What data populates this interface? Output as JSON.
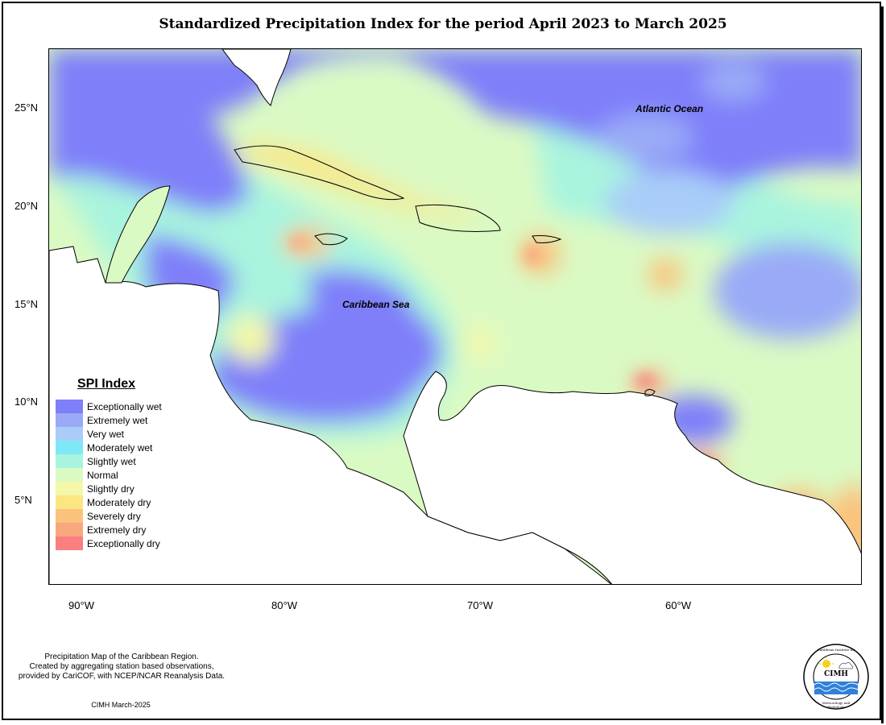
{
  "title": "Standardized Precipitation Index for the period April 2023 to March 2025",
  "latitude_ticks": [
    "25°N",
    "20°N",
    "15°N",
    "10°N",
    "5°N"
  ],
  "longitude_ticks": [
    "90°W",
    "80°W",
    "70°W",
    "60°W"
  ],
  "labels": {
    "atlantic": "Atlantic Ocean",
    "caribbean": "Caribbean Sea"
  },
  "legend": {
    "title": "SPI Index",
    "items": [
      {
        "label": "Exceptionally wet",
        "color": "#7f7ff9"
      },
      {
        "label": "Extremely wet",
        "color": "#9aaaf7"
      },
      {
        "label": "Very wet",
        "color": "#a9cdf8"
      },
      {
        "label": "Moderately wet",
        "color": "#7fe8f7"
      },
      {
        "label": "Slightly wet",
        "color": "#a9f4de"
      },
      {
        "label": "Normal",
        "color": "#dafac4"
      },
      {
        "label": "Slightly dry",
        "color": "#f4f8a8"
      },
      {
        "label": "Moderately dry",
        "color": "#fbe681"
      },
      {
        "label": "Severely dry",
        "color": "#fbc27d"
      },
      {
        "label": "Extremely dry",
        "color": "#f9a77f"
      },
      {
        "label": "Exceptionally dry",
        "color": "#f97f80"
      }
    ]
  },
  "footer": {
    "line1": "Precipitation Map of the Caribbean Region.",
    "line2": "Created by aggregating station based observations,",
    "line3": "provided by CariCOF, with NCEP/NCAR Reanalysis Data.",
    "credit": "CIMH March-2025"
  },
  "logo": {
    "name": "CIMH",
    "top_text": "Caribbean Institute for",
    "bottom_text": "Meteorology and Hydrology"
  }
}
